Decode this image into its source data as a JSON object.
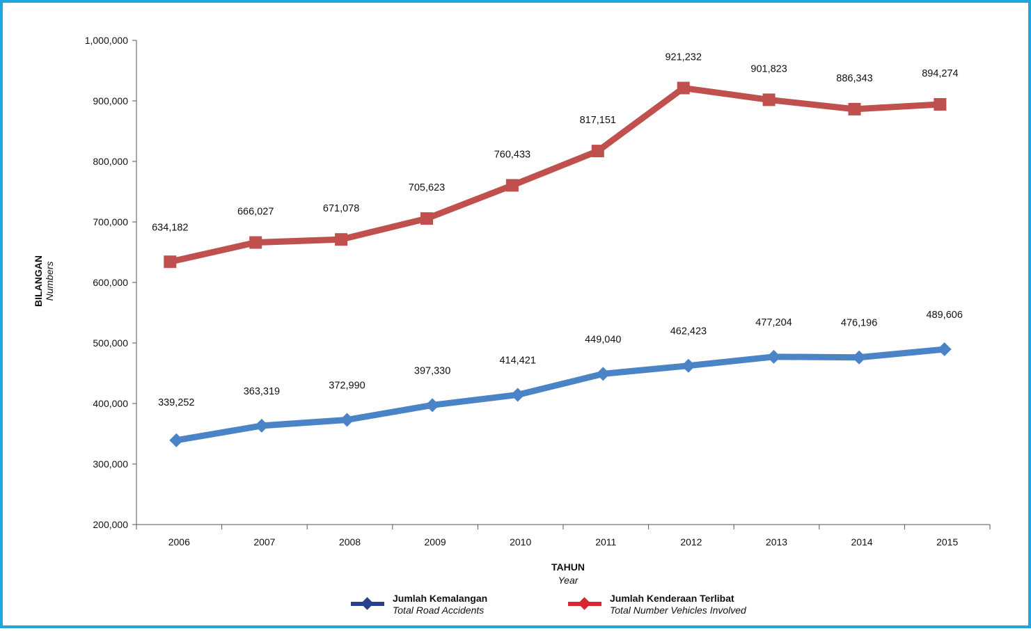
{
  "frame_color": "#1fa6e0",
  "chart_data": {
    "type": "line",
    "categories": [
      "2006",
      "2007",
      "2008",
      "2009",
      "2010",
      "2011",
      "2012",
      "2013",
      "2014",
      "2015"
    ],
    "series": [
      {
        "name": "Jumlah Kemalangan",
        "name_en": "Total Road Accidents",
        "color": "#4a84c6",
        "legend_color": "#2b3f8f",
        "marker": "diamond",
        "values": [
          339252,
          363319,
          372990,
          397330,
          414421,
          449040,
          462423,
          477204,
          476196,
          489606
        ],
        "labels": [
          "339,252",
          "363,319",
          "372,990",
          "397,330",
          "414,421",
          "449,040",
          "462,423",
          "477,204",
          "476,196",
          "489,606"
        ]
      },
      {
        "name": "Jumlah Kenderaan Terlibat",
        "name_en": "Total Number Vehicles Involved",
        "color": "#c0504d",
        "legend_color": "#d8262f",
        "marker": "square",
        "values": [
          634182,
          666027,
          671078,
          705623,
          760433,
          817151,
          921232,
          901823,
          886343,
          894274
        ],
        "labels": [
          "634,182",
          "666,027",
          "671,078",
          "705,623",
          "760,433",
          "817,151",
          "921,232",
          "901,823",
          "886,343",
          "894,274"
        ]
      }
    ],
    "ylim": [
      200000,
      1000000
    ],
    "yticks": [
      {
        "value": 200000,
        "label": "200,000"
      },
      {
        "value": 300000,
        "label": "300,000"
      },
      {
        "value": 400000,
        "label": "400,000"
      },
      {
        "value": 500000,
        "label": "500,000"
      },
      {
        "value": 600000,
        "label": "600,000"
      },
      {
        "value": 700000,
        "label": "700,000"
      },
      {
        "value": 800000,
        "label": "800,000"
      },
      {
        "value": 900000,
        "label": "900,000"
      },
      {
        "value": 1000000,
        "label": "1,000,000"
      }
    ],
    "ylabel": "BILANGAN",
    "ylabel_en": "Numbers",
    "xlabel": "TAHUN",
    "xlabel_en": "Year",
    "grid": false,
    "legend_position": "bottom"
  }
}
